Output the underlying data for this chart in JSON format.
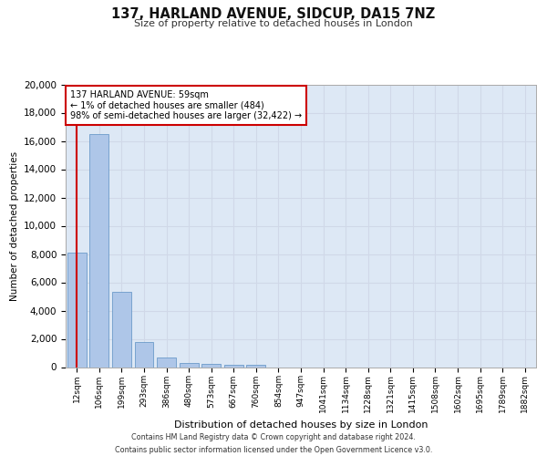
{
  "title_line1": "137, HARLAND AVENUE, SIDCUP, DA15 7NZ",
  "title_line2": "Size of property relative to detached houses in London",
  "xlabel": "Distribution of detached houses by size in London",
  "ylabel": "Number of detached properties",
  "categories": [
    "12sqm",
    "106sqm",
    "199sqm",
    "293sqm",
    "386sqm",
    "480sqm",
    "573sqm",
    "667sqm",
    "760sqm",
    "854sqm",
    "947sqm",
    "1041sqm",
    "1134sqm",
    "1228sqm",
    "1321sqm",
    "1415sqm",
    "1508sqm",
    "1602sqm",
    "1695sqm",
    "1789sqm",
    "1882sqm"
  ],
  "values": [
    8100,
    16500,
    5300,
    1800,
    650,
    320,
    200,
    160,
    160,
    0,
    0,
    0,
    0,
    0,
    0,
    0,
    0,
    0,
    0,
    0,
    0
  ],
  "bar_color": "#aec6e8",
  "bar_edge_color": "#5a8fc2",
  "annotation_text": "137 HARLAND AVENUE: 59sqm\n← 1% of detached houses are smaller (484)\n98% of semi-detached houses are larger (32,422) →",
  "annotation_box_color": "#ffffff",
  "annotation_box_edge": "#cc0000",
  "vline_color": "#cc0000",
  "ylim": [
    0,
    20000
  ],
  "yticks": [
    0,
    2000,
    4000,
    6000,
    8000,
    10000,
    12000,
    14000,
    16000,
    18000,
    20000
  ],
  "grid_color": "#d0d8e8",
  "bg_color": "#dde8f5",
  "footer_line1": "Contains HM Land Registry data © Crown copyright and database right 2024.",
  "footer_line2": "Contains public sector information licensed under the Open Government Licence v3.0."
}
